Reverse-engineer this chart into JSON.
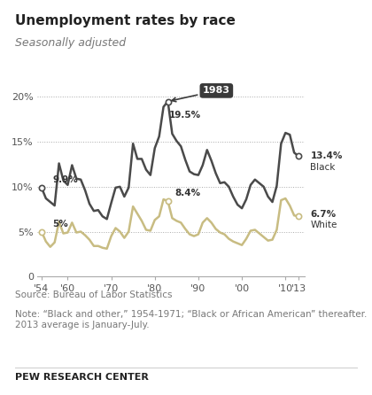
{
  "title": "Unemployment rates by race",
  "subtitle": "Seasonally adjusted",
  "source": "Source: Bureau of Labor Statistics",
  "note": "Note: “Black and other,” 1954-1971; “Black or African American” thereafter.\n2013 average is January-July.",
  "footer": "PEW RESEARCH CENTER",
  "black_color": "#4a4a4a",
  "white_color": "#c8bc82",
  "background_color": "#ffffff",
  "years": [
    1954,
    1955,
    1956,
    1957,
    1958,
    1959,
    1960,
    1961,
    1962,
    1963,
    1964,
    1965,
    1966,
    1967,
    1968,
    1969,
    1970,
    1971,
    1972,
    1973,
    1974,
    1975,
    1976,
    1977,
    1978,
    1979,
    1980,
    1981,
    1982,
    1983,
    1984,
    1985,
    1986,
    1987,
    1988,
    1989,
    1990,
    1991,
    1992,
    1993,
    1994,
    1995,
    1996,
    1997,
    1998,
    1999,
    2000,
    2001,
    2002,
    2003,
    2004,
    2005,
    2006,
    2007,
    2008,
    2009,
    2010,
    2011,
    2012,
    2013
  ],
  "black": [
    9.9,
    8.7,
    8.3,
    7.9,
    12.6,
    10.7,
    10.2,
    12.4,
    10.9,
    10.8,
    9.6,
    8.1,
    7.3,
    7.4,
    6.7,
    6.4,
    8.2,
    9.9,
    10.0,
    8.9,
    9.9,
    14.8,
    13.1,
    13.1,
    11.9,
    11.3,
    14.3,
    15.6,
    18.9,
    19.5,
    15.9,
    15.1,
    14.5,
    13.0,
    11.7,
    11.4,
    11.3,
    12.4,
    14.1,
    12.9,
    11.5,
    10.4,
    10.5,
    10.0,
    8.9,
    8.0,
    7.6,
    8.6,
    10.2,
    10.8,
    10.4,
    10.0,
    8.9,
    8.3,
    10.1,
    14.8,
    16.0,
    15.8,
    13.8,
    13.4
  ],
  "white": [
    5.0,
    3.9,
    3.3,
    3.8,
    6.1,
    4.8,
    4.9,
    6.0,
    4.9,
    5.0,
    4.6,
    4.1,
    3.4,
    3.4,
    3.2,
    3.1,
    4.5,
    5.4,
    5.0,
    4.3,
    5.0,
    7.8,
    7.0,
    6.2,
    5.2,
    5.1,
    6.3,
    6.7,
    8.6,
    8.4,
    6.5,
    6.2,
    6.0,
    5.3,
    4.7,
    4.5,
    4.7,
    6.0,
    6.5,
    6.0,
    5.3,
    4.9,
    4.7,
    4.2,
    3.9,
    3.7,
    3.5,
    4.2,
    5.1,
    5.2,
    4.8,
    4.4,
    4.0,
    4.1,
    5.2,
    8.5,
    8.7,
    7.9,
    6.8,
    6.7
  ],
  "ylim": [
    0,
    22
  ],
  "yticks": [
    0,
    5,
    10,
    15,
    20
  ],
  "xlim": [
    1953,
    2014.5
  ],
  "xtick_years": [
    1954,
    1960,
    1970,
    1980,
    1990,
    2000,
    2010,
    2013
  ],
  "xtick_labels": [
    "'54",
    "'60",
    "'70",
    "'80",
    "'90",
    "'00",
    "'10",
    "'13"
  ]
}
